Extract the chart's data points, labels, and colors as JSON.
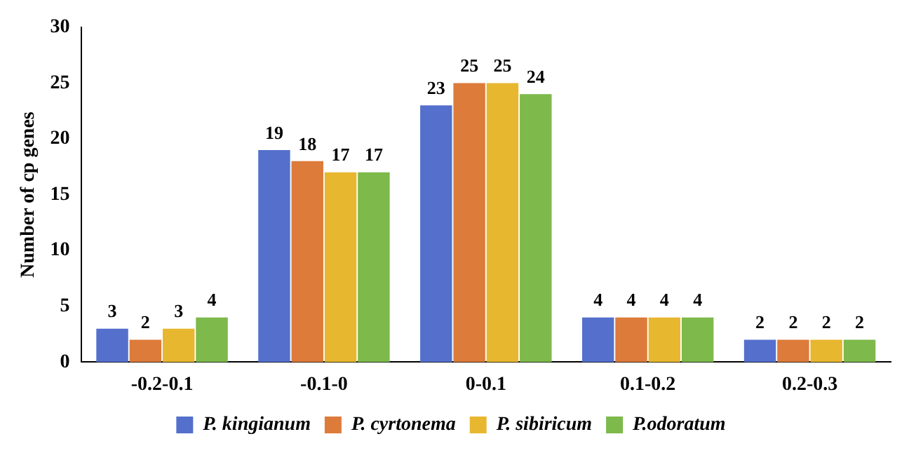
{
  "chart_data": {
    "type": "bar",
    "ylabel": "Number of cp genes",
    "categories": [
      "-0.2-0.1",
      "-0.1-0",
      "0-0.1",
      "0.1-0.2",
      "0.2-0.3"
    ],
    "series": [
      {
        "name": "P. kingianum",
        "color": "#5470cc",
        "values": [
          3,
          19,
          23,
          4,
          2
        ]
      },
      {
        "name": "P. cyrtonema",
        "color": "#dd7b3b",
        "values": [
          2,
          18,
          25,
          4,
          2
        ]
      },
      {
        "name": "P. sibiricum",
        "color": "#e8b730",
        "values": [
          3,
          17,
          25,
          4,
          2
        ]
      },
      {
        "name": "P.odoratum",
        "color": "#7db94b",
        "values": [
          4,
          17,
          24,
          4,
          2
        ]
      }
    ],
    "ylim": [
      0,
      30
    ],
    "yticks": [
      0,
      5,
      10,
      15,
      20,
      25,
      30
    ],
    "grid": false,
    "legend": "bottom",
    "data_labels": true
  }
}
